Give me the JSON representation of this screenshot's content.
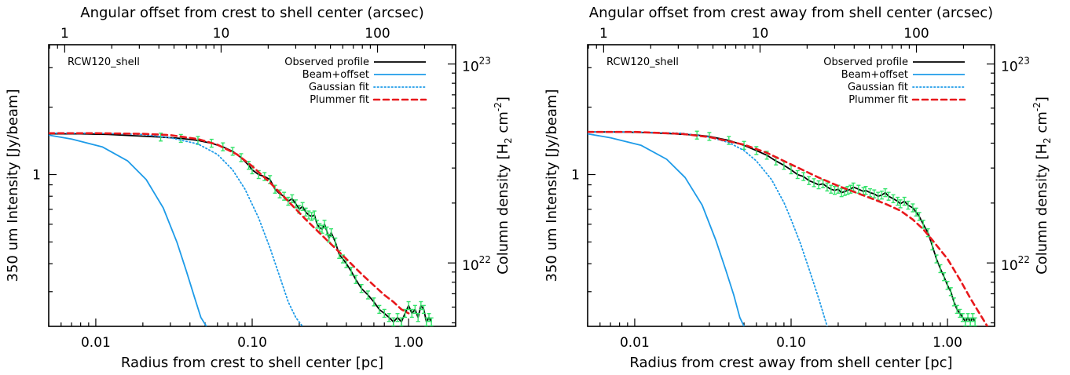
{
  "chart_data": [
    {
      "type": "line",
      "label": "RCW120_shell",
      "xlabel": "Radius from crest to shell center [pc]",
      "top_xlabel": "Angular offset from crest to shell center (arcsec)",
      "ylabel": "350 um Intensity [Jy/beam]",
      "right_ylabel_base": "Column density [H",
      "right_ylabel_sub": "2",
      "right_ylabel_tail": " cm",
      "right_ylabel_sup": "-2",
      "right_ylabel_end": "]",
      "x_scale": "log",
      "y_scale": "log",
      "xlim": [
        0.005,
        2.0
      ],
      "ylim": [
        0.21,
        3.8
      ],
      "x_ticks": [
        {
          "v": 0.01,
          "label": "0.01"
        },
        {
          "v": 0.1,
          "label": "0.10"
        },
        {
          "v": 1.0,
          "label": "1.00"
        }
      ],
      "y_ticks": [
        {
          "v": 1,
          "label": "1"
        }
      ],
      "top_ticks": [
        {
          "v": 1,
          "label": "1"
        },
        {
          "v": 10,
          "label": "10"
        },
        {
          "v": 100,
          "label": "100"
        }
      ],
      "top_range_arcsec": [
        0.79,
        316
      ],
      "right_ticks": [
        {
          "v": 1e+23,
          "base": "10",
          "exp": "23"
        },
        {
          "v": 1e+22,
          "base": "10",
          "exp": "22"
        }
      ],
      "right_range": [
        4.8e+21,
        1.25e+23
      ],
      "legend_position": "top-right",
      "series": [
        {
          "name": "Observed profile",
          "color": "#000000",
          "style": "solid",
          "errorbars": true,
          "points": [
            [
              0.005,
              1.52
            ],
            [
              0.008,
              1.52
            ],
            [
              0.012,
              1.51
            ],
            [
              0.018,
              1.49
            ],
            [
              0.026,
              1.47
            ],
            [
              0.035,
              1.45
            ],
            [
              0.045,
              1.42
            ],
            [
              0.055,
              1.38
            ],
            [
              0.065,
              1.33
            ],
            [
              0.075,
              1.27
            ],
            [
              0.085,
              1.19
            ],
            [
              0.095,
              1.1
            ],
            [
              0.1,
              1.05
            ],
            [
              0.11,
              1.0
            ],
            [
              0.12,
              0.98
            ],
            [
              0.13,
              0.95
            ],
            [
              0.14,
              0.86
            ],
            [
              0.15,
              0.82
            ],
            [
              0.16,
              0.8
            ],
            [
              0.17,
              0.76
            ],
            [
              0.18,
              0.78
            ],
            [
              0.19,
              0.74
            ],
            [
              0.2,
              0.7
            ],
            [
              0.21,
              0.72
            ],
            [
              0.22,
              0.68
            ],
            [
              0.23,
              0.66
            ],
            [
              0.24,
              0.65
            ],
            [
              0.25,
              0.66
            ],
            [
              0.26,
              0.6
            ],
            [
              0.27,
              0.58
            ],
            [
              0.28,
              0.57
            ],
            [
              0.29,
              0.6
            ],
            [
              0.3,
              0.56
            ],
            [
              0.31,
              0.52
            ],
            [
              0.32,
              0.55
            ],
            [
              0.34,
              0.5
            ],
            [
              0.36,
              0.44
            ],
            [
              0.38,
              0.42
            ],
            [
              0.4,
              0.4
            ],
            [
              0.43,
              0.37
            ],
            [
              0.46,
              0.34
            ],
            [
              0.5,
              0.31
            ],
            [
              0.55,
              0.29
            ],
            [
              0.6,
              0.27
            ],
            [
              0.65,
              0.25
            ],
            [
              0.7,
              0.24
            ],
            [
              0.75,
              0.23
            ],
            [
              0.8,
              0.22
            ],
            [
              0.85,
              0.23
            ],
            [
              0.9,
              0.22
            ],
            [
              0.95,
              0.24
            ],
            [
              1.0,
              0.26
            ],
            [
              1.05,
              0.24
            ],
            [
              1.1,
              0.25
            ],
            [
              1.15,
              0.23
            ],
            [
              1.2,
              0.26
            ],
            [
              1.25,
              0.25
            ],
            [
              1.3,
              0.22
            ],
            [
              1.35,
              0.23
            ],
            [
              1.4,
              0.22
            ]
          ]
        },
        {
          "name": "Beam+offset",
          "color": "#1e9be8",
          "style": "solid",
          "points": [
            [
              0.005,
              1.5
            ],
            [
              0.007,
              1.44
            ],
            [
              0.011,
              1.33
            ],
            [
              0.016,
              1.15
            ],
            [
              0.021,
              0.95
            ],
            [
              0.027,
              0.71
            ],
            [
              0.033,
              0.5
            ],
            [
              0.038,
              0.37
            ],
            [
              0.043,
              0.28
            ],
            [
              0.047,
              0.23
            ],
            [
              0.051,
              0.21
            ]
          ]
        },
        {
          "name": "Gaussian fit",
          "color": "#1e9be8",
          "style": "dotted",
          "points": [
            [
              0.005,
              1.53
            ],
            [
              0.01,
              1.53
            ],
            [
              0.02,
              1.51
            ],
            [
              0.03,
              1.46
            ],
            [
              0.045,
              1.37
            ],
            [
              0.06,
              1.23
            ],
            [
              0.075,
              1.05
            ],
            [
              0.09,
              0.86
            ],
            [
              0.11,
              0.64
            ],
            [
              0.13,
              0.47
            ],
            [
              0.15,
              0.35
            ],
            [
              0.17,
              0.27
            ],
            [
              0.19,
              0.23
            ],
            [
              0.21,
              0.21
            ]
          ]
        },
        {
          "name": "Plummer fit",
          "color": "#e8181c",
          "style": "dashed",
          "points": [
            [
              0.005,
              1.53
            ],
            [
              0.01,
              1.53
            ],
            [
              0.02,
              1.52
            ],
            [
              0.03,
              1.5
            ],
            [
              0.045,
              1.44
            ],
            [
              0.06,
              1.36
            ],
            [
              0.08,
              1.23
            ],
            [
              0.1,
              1.09
            ],
            [
              0.13,
              0.92
            ],
            [
              0.17,
              0.76
            ],
            [
              0.22,
              0.63
            ],
            [
              0.3,
              0.51
            ],
            [
              0.4,
              0.42
            ],
            [
              0.5,
              0.36
            ],
            [
              0.6,
              0.32
            ],
            [
              0.7,
              0.29
            ],
            [
              0.8,
              0.27
            ],
            [
              0.9,
              0.25
            ],
            [
              1.0,
              0.24
            ]
          ]
        }
      ]
    },
    {
      "type": "line",
      "label": "RCW120_shell",
      "xlabel": "Radius from crest away from shell center [pc]",
      "top_xlabel": "Angular offset from crest away from shell center (arcsec)",
      "ylabel": "350 um Intensity [Jy/beam]",
      "right_ylabel_base": "Column density [H",
      "right_ylabel_sub": "2",
      "right_ylabel_tail": " cm",
      "right_ylabel_sup": "-2",
      "right_ylabel_end": "]",
      "x_scale": "log",
      "y_scale": "log",
      "xlim": [
        0.005,
        2.0
      ],
      "ylim": [
        0.21,
        3.8
      ],
      "x_ticks": [
        {
          "v": 0.01,
          "label": "0.01"
        },
        {
          "v": 0.1,
          "label": "0.10"
        },
        {
          "v": 1.0,
          "label": "1.00"
        }
      ],
      "y_ticks": [
        {
          "v": 1,
          "label": "1"
        }
      ],
      "top_ticks": [
        {
          "v": 1,
          "label": "1"
        },
        {
          "v": 10,
          "label": "10"
        },
        {
          "v": 100,
          "label": "100"
        }
      ],
      "top_range_arcsec": [
        0.79,
        316
      ],
      "right_ticks": [
        {
          "v": 1e+23,
          "base": "10",
          "exp": "23"
        },
        {
          "v": 1e+22,
          "base": "10",
          "exp": "22"
        }
      ],
      "right_range": [
        4.8e+21,
        1.25e+23
      ],
      "legend_position": "top-right",
      "series": [
        {
          "name": "Observed profile",
          "color": "#000000",
          "style": "solid",
          "errorbars": true,
          "points": [
            [
              0.005,
              1.55
            ],
            [
              0.008,
              1.55
            ],
            [
              0.012,
              1.54
            ],
            [
              0.018,
              1.52
            ],
            [
              0.025,
              1.5
            ],
            [
              0.03,
              1.48
            ],
            [
              0.04,
              1.42
            ],
            [
              0.05,
              1.35
            ],
            [
              0.06,
              1.28
            ],
            [
              0.07,
              1.22
            ],
            [
              0.08,
              1.15
            ],
            [
              0.09,
              1.1
            ],
            [
              0.1,
              1.05
            ],
            [
              0.11,
              1.0
            ],
            [
              0.12,
              0.98
            ],
            [
              0.13,
              0.94
            ],
            [
              0.14,
              0.92
            ],
            [
              0.15,
              0.9
            ],
            [
              0.16,
              0.91
            ],
            [
              0.17,
              0.88
            ],
            [
              0.18,
              0.86
            ],
            [
              0.19,
              0.85
            ],
            [
              0.2,
              0.86
            ],
            [
              0.21,
              0.83
            ],
            [
              0.22,
              0.84
            ],
            [
              0.23,
              0.85
            ],
            [
              0.24,
              0.86
            ],
            [
              0.25,
              0.88
            ],
            [
              0.27,
              0.86
            ],
            [
              0.29,
              0.84
            ],
            [
              0.3,
              0.85
            ],
            [
              0.32,
              0.83
            ],
            [
              0.34,
              0.82
            ],
            [
              0.36,
              0.8
            ],
            [
              0.38,
              0.81
            ],
            [
              0.4,
              0.83
            ],
            [
              0.42,
              0.8
            ],
            [
              0.45,
              0.78
            ],
            [
              0.48,
              0.76
            ],
            [
              0.5,
              0.74
            ],
            [
              0.53,
              0.76
            ],
            [
              0.56,
              0.73
            ],
            [
              0.6,
              0.71
            ],
            [
              0.63,
              0.68
            ],
            [
              0.66,
              0.65
            ],
            [
              0.7,
              0.6
            ],
            [
              0.75,
              0.55
            ],
            [
              0.8,
              0.48
            ],
            [
              0.85,
              0.42
            ],
            [
              0.9,
              0.38
            ],
            [
              0.95,
              0.35
            ],
            [
              1.0,
              0.32
            ],
            [
              1.05,
              0.3
            ],
            [
              1.1,
              0.27
            ],
            [
              1.15,
              0.25
            ],
            [
              1.2,
              0.24
            ],
            [
              1.25,
              0.23
            ],
            [
              1.3,
              0.22
            ],
            [
              1.35,
              0.23
            ],
            [
              1.4,
              0.22
            ],
            [
              1.45,
              0.23
            ],
            [
              1.5,
              0.22
            ]
          ]
        },
        {
          "name": "Beam+offset",
          "color": "#1e9be8",
          "style": "solid",
          "points": [
            [
              0.005,
              1.52
            ],
            [
              0.007,
              1.46
            ],
            [
              0.011,
              1.35
            ],
            [
              0.016,
              1.17
            ],
            [
              0.021,
              0.97
            ],
            [
              0.027,
              0.73
            ],
            [
              0.033,
              0.51
            ],
            [
              0.038,
              0.38
            ],
            [
              0.043,
              0.29
            ],
            [
              0.047,
              0.23
            ],
            [
              0.05,
              0.21
            ]
          ]
        },
        {
          "name": "Gaussian fit",
          "color": "#1e9be8",
          "style": "dotted",
          "points": [
            [
              0.005,
              1.55
            ],
            [
              0.01,
              1.55
            ],
            [
              0.02,
              1.53
            ],
            [
              0.03,
              1.47
            ],
            [
              0.04,
              1.39
            ],
            [
              0.05,
              1.28
            ],
            [
              0.06,
              1.15
            ],
            [
              0.075,
              0.95
            ],
            [
              0.09,
              0.75
            ],
            [
              0.1,
              0.63
            ],
            [
              0.115,
              0.49
            ],
            [
              0.13,
              0.38
            ],
            [
              0.15,
              0.28
            ],
            [
              0.17,
              0.21
            ]
          ]
        },
        {
          "name": "Plummer fit",
          "color": "#e8181c",
          "style": "dashed",
          "points": [
            [
              0.005,
              1.55
            ],
            [
              0.01,
              1.55
            ],
            [
              0.02,
              1.52
            ],
            [
              0.03,
              1.47
            ],
            [
              0.05,
              1.36
            ],
            [
              0.07,
              1.25
            ],
            [
              0.1,
              1.11
            ],
            [
              0.15,
              0.97
            ],
            [
              0.2,
              0.89
            ],
            [
              0.3,
              0.8
            ],
            [
              0.4,
              0.74
            ],
            [
              0.5,
              0.69
            ],
            [
              0.6,
              0.63
            ],
            [
              0.7,
              0.57
            ],
            [
              0.8,
              0.51
            ],
            [
              1.0,
              0.42
            ],
            [
              1.2,
              0.34
            ],
            [
              1.4,
              0.28
            ],
            [
              1.6,
              0.24
            ],
            [
              1.8,
              0.21
            ]
          ]
        }
      ]
    }
  ]
}
